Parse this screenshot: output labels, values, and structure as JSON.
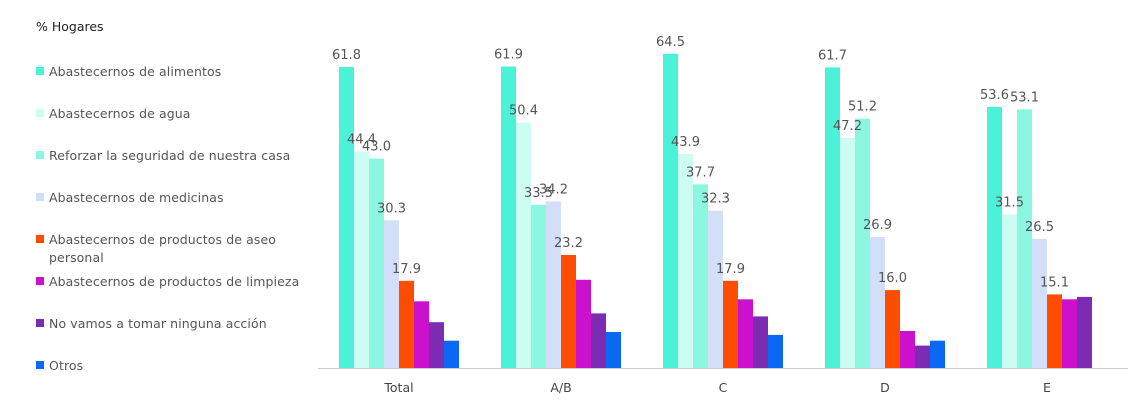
{
  "chart_data": {
    "type": "bar",
    "ylabel": "% Hogares",
    "categories": [
      "Total",
      "A/B",
      "C",
      "D",
      "E"
    ],
    "ylim": [
      0,
      70
    ],
    "series": [
      {
        "name": "Abastecernos de alimentos",
        "color": "#4CF2D8",
        "values": [
          61.8,
          61.9,
          64.5,
          61.7,
          53.6
        ]
      },
      {
        "name": "Abastecernos de agua",
        "color": "#CCFCF2",
        "values": [
          44.4,
          50.4,
          43.9,
          47.2,
          31.5
        ]
      },
      {
        "name": "Reforzar la seguridad de nuestra casa",
        "color": "#8CF7E1",
        "values": [
          43.0,
          33.5,
          37.7,
          51.2,
          53.1
        ]
      },
      {
        "name": "Abastecernos de medicinas",
        "color": "#D3DFF8",
        "values": [
          30.3,
          34.2,
          32.3,
          26.9,
          26.5
        ]
      },
      {
        "name": "Abastecernos de productos de aseo personal",
        "color": "#FF4D00",
        "values": [
          17.9,
          23.2,
          17.9,
          16.0,
          15.1
        ]
      },
      {
        "name": "Abastecernos de productos de limpieza",
        "color": "#CC11CC",
        "values": [
          13.7,
          18.1,
          14.1,
          7.6,
          14.1
        ]
      },
      {
        "name": "No vamos a tomar ninguna acción",
        "color": "#7B2CB3",
        "values": [
          9.4,
          11.2,
          10.6,
          4.6,
          14.6
        ]
      },
      {
        "name": "Otros",
        "color": "#0A68F5",
        "values": [
          5.6,
          7.4,
          6.8,
          5.6,
          0
        ]
      }
    ],
    "labels": [
      [
        "61.8",
        "44.4",
        "43.0",
        "30.3",
        "17.9"
      ],
      [
        "61.9",
        "50.4",
        "33.5",
        "34.2",
        "23.2"
      ],
      [
        "64.5",
        "43.9",
        "37.7",
        "32.3",
        "17.9"
      ],
      [
        "61.7",
        "47.2",
        "51.2",
        "26.9",
        "16.0"
      ],
      [
        "53.6",
        "31.5",
        "53.1",
        "26.5",
        "15.1"
      ]
    ]
  }
}
